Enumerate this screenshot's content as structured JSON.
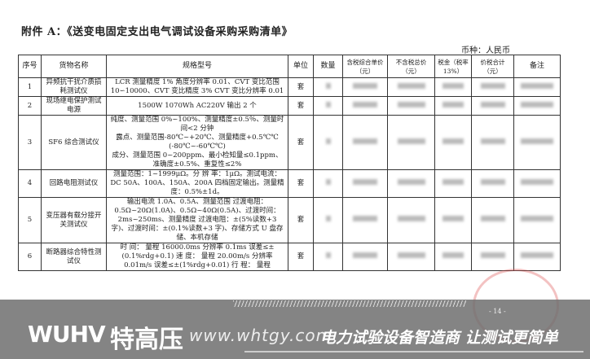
{
  "title": "附件 A：《送变电固定支出电气调试设备采购采购清单》",
  "currency": "币种：人民币",
  "headers": [
    "序号",
    "货物名称",
    "规格型号",
    "单位",
    "数量",
    "含税综合单价 （元）",
    "不含税总价（元）",
    "税金（税率13%）",
    "价税合计（元）",
    "备注"
  ],
  "rows": [
    {
      "no": "1",
      "name": "异频抗干扰介质损耗测试仪",
      "spec": [
        "LCR 测量精度 1% 角度分辨率 0.01、CVT 变比范围 10∽10000、CVT 变比精度 3% CVT 变比分辨率 0.01"
      ],
      "unit": "套"
    },
    {
      "no": "2",
      "name": "现场继电保护测试电源",
      "spec": [
        "1500W  1070Wh  AC220V 输出 2 个"
      ],
      "unit": "套"
    },
    {
      "no": "3",
      "name": "SF6 综合测试仪",
      "spec": [
        "纯度、测量范围 0%~100%、测量精度±0.5％、测量时间<2 分钟",
        "露点、测量范围-80℃~+20℃、测量精度+0.5℃℃(-80℃~-60℃℃)",
        "成分、测量范围 0~200ppm、最小检知量≤0.1ppm、准确度±0.5%、重复性≤2%"
      ],
      "unit": "套"
    },
    {
      "no": "4",
      "name": "回路电阻测试仪",
      "spec": [
        "测量范围：1~1999μΩ。分 辨 率：1μΩ。测试电流：DC 50A、100A、150A、200A 四档固定输出。测量精度：0.5%±1d。"
      ],
      "unit": "套"
    },
    {
      "no": "5",
      "name": "变压器有载分接开关测试仪",
      "spec": [
        "输出电流  1.0A、0.5A、测量范围  过渡电阻：0.5Ω~20Ω(1.0A)、0.5Ω~40Ω(0.5A)、过渡时间：2ms~250ms、测量精度  过渡电阻：±(5%读数+3 字)、过渡时间：±(0.1%读数+3 字)、存储方式  U 盘存储、本机存储"
      ],
      "unit": "套"
    },
    {
      "no": "6",
      "name": "断路器综合特性测试仪",
      "spec": [
        "时 间： 量程 16000.0ms 分辨率 0.1ms 误差≤±(0.1%rdg+0.1) 速 度： 量程 20.00m/s 分辨率 0.01m/s 误差≤±(1%rdg+0.01) 行 程： 量程"
      ],
      "unit": "套"
    }
  ],
  "page_number": "- 14 -",
  "banner": {
    "logo": "WUHV",
    "logo_cn": "特高压",
    "url": "www.whtgy.com",
    "slogan": "电力试验设备智造商 让测试更简单"
  }
}
